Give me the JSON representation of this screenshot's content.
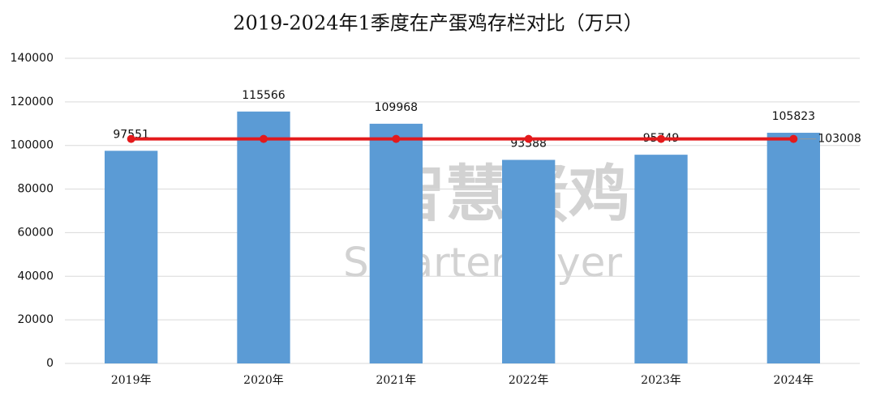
{
  "chart_data": {
    "type": "bar",
    "title": "2019-2024年1季度在产蛋鸡存栏对比（万只）",
    "categories": [
      "2019年",
      "2020年",
      "2021年",
      "2022年",
      "2023年",
      "2024年"
    ],
    "series": [
      {
        "type": "bar",
        "color": "#5b9bd5",
        "values": [
          97551,
          115566,
          109968,
          93388,
          95749,
          105823
        ],
        "labels": "all"
      },
      {
        "type": "line",
        "color": "#e31a1c",
        "values": [
          103008,
          103008,
          103008,
          103008,
          103008,
          103008
        ],
        "labels": "last"
      }
    ],
    "ylim": [
      0,
      140000
    ],
    "yticks": [
      0,
      20000,
      40000,
      60000,
      80000,
      100000,
      120000,
      140000
    ],
    "grid": true,
    "watermark": [
      "智慧蛋鸡",
      "Smarter layer"
    ]
  }
}
